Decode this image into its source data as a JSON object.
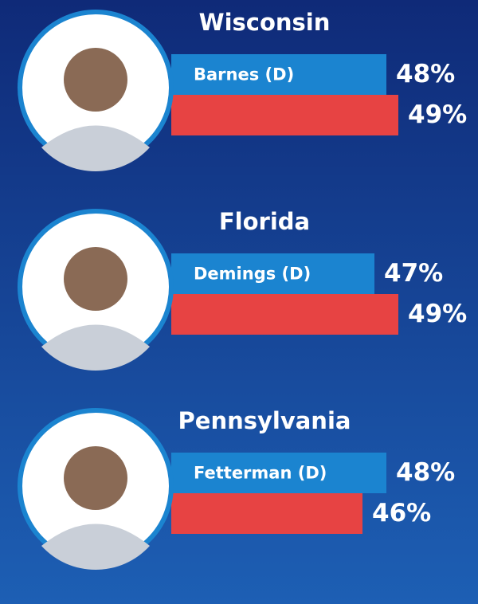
{
  "chart_data": [
    {
      "type": "bar",
      "title": "Wisconsin",
      "categories": [
        "Barnes (D)",
        null
      ],
      "values": [
        48,
        49
      ],
      "value_labels": [
        "48%",
        "49%"
      ],
      "colors": [
        "#1b84d0",
        "#e74343"
      ],
      "xlim": [
        30,
        52
      ]
    },
    {
      "type": "bar",
      "title": "Florida",
      "categories": [
        "Demings (D)",
        null
      ],
      "values": [
        47,
        49
      ],
      "value_labels": [
        "47%",
        "49%"
      ],
      "colors": [
        "#1b84d0",
        "#e74343"
      ],
      "xlim": [
        30,
        52
      ]
    },
    {
      "type": "bar",
      "title": "Pennsylvania",
      "categories": [
        "Fetterman (D)",
        null
      ],
      "values": [
        48,
        46
      ],
      "value_labels": [
        "48%",
        "46%"
      ],
      "colors": [
        "#1b84d0",
        "#e74343"
      ],
      "xlim": [
        30,
        52
      ]
    }
  ]
}
